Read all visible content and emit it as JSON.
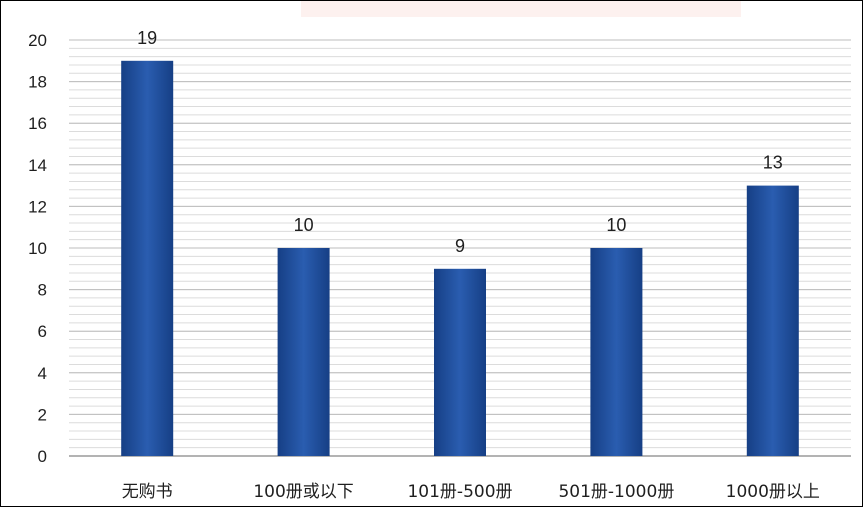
{
  "chart_data": {
    "type": "bar",
    "categories": [
      "无购书",
      "100册或以下",
      "101册-500册",
      "501册-1000册",
      "1000册以上"
    ],
    "values": [
      19,
      10,
      9,
      10,
      13
    ],
    "data_labels": [
      "19",
      "10",
      "9",
      "10",
      "13"
    ],
    "yticks": [
      "0",
      "2",
      "4",
      "6",
      "8",
      "10",
      "12",
      "14",
      "16",
      "18",
      "20"
    ],
    "ylim": [
      0,
      20
    ],
    "grid": true,
    "legend": "none",
    "bar_color": "#1f4e9a",
    "bar_color_light": "#3a6cc0"
  }
}
